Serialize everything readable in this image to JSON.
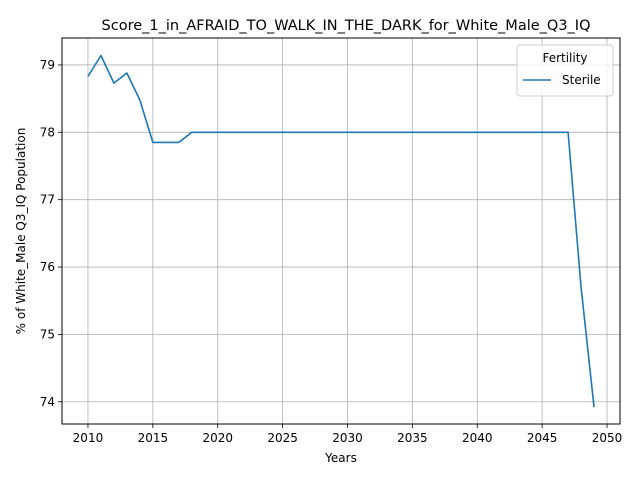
{
  "chart_data": {
    "type": "line",
    "title": "Score_1_in_AFRAID_TO_WALK_IN_THE_DARK_for_White_Male_Q3_IQ",
    "xlabel": "Years",
    "ylabel": "% of White_Male Q3_IQ Population",
    "xlim": [
      2008,
      2051
    ],
    "ylim": [
      73.67,
      79.4
    ],
    "x_ticks": [
      2010,
      2015,
      2020,
      2025,
      2030,
      2035,
      2040,
      2045,
      2050
    ],
    "y_ticks": [
      74,
      75,
      76,
      77,
      78,
      79
    ],
    "grid": true,
    "legend": {
      "title": "Fertility",
      "placement": "top-right"
    },
    "series": [
      {
        "name": "Sterile",
        "color": "#1f77b4",
        "x": [
          2010,
          2011,
          2012,
          2013,
          2014,
          2015,
          2016,
          2017,
          2018,
          2019,
          2020,
          2021,
          2022,
          2023,
          2024,
          2025,
          2026,
          2027,
          2028,
          2029,
          2030,
          2031,
          2032,
          2033,
          2034,
          2035,
          2036,
          2037,
          2038,
          2039,
          2040,
          2041,
          2042,
          2043,
          2044,
          2045,
          2046,
          2047,
          2048,
          2049
        ],
        "y": [
          78.83,
          79.14,
          78.73,
          78.88,
          78.48,
          77.85,
          77.85,
          77.85,
          78.0,
          78.0,
          78.0,
          78.0,
          78.0,
          78.0,
          78.0,
          78.0,
          78.0,
          78.0,
          78.0,
          78.0,
          78.0,
          78.0,
          78.0,
          78.0,
          78.0,
          78.0,
          78.0,
          78.0,
          78.0,
          78.0,
          78.0,
          78.0,
          78.0,
          78.0,
          78.0,
          78.0,
          78.0,
          78.0,
          75.7,
          73.92
        ]
      }
    ]
  }
}
